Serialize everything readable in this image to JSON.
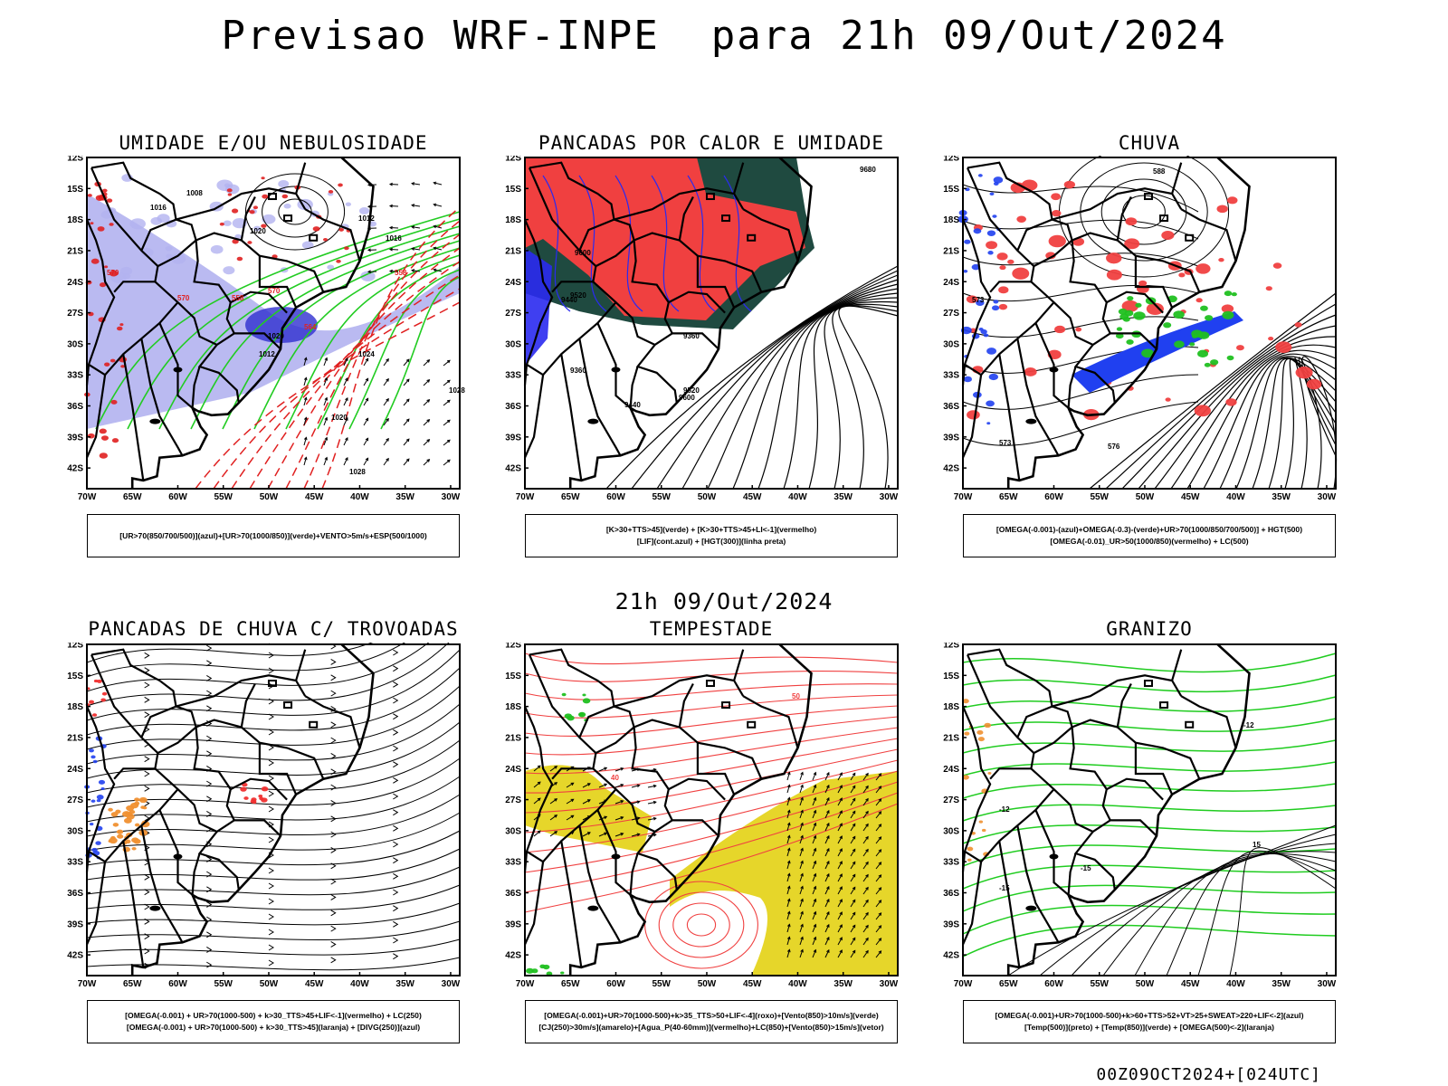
{
  "page": {
    "title": "Previsao WRF-INPE  para 21h 09/Out/2024",
    "subtitle": "21h 09/Out/2024",
    "footer": "00Z09OCT2024+[024UTC]"
  },
  "axes": {
    "lat_labels": [
      "12S",
      "15S",
      "18S",
      "21S",
      "24S",
      "27S",
      "30S",
      "33S",
      "36S",
      "39S",
      "42S"
    ],
    "lon_labels": [
      "70W",
      "65W",
      "60W",
      "55W",
      "50W",
      "45W",
      "40W",
      "35W",
      "30W"
    ]
  },
  "panels": [
    {
      "title": "UMIDADE E/OU NEBULOSIDADE",
      "legend": [
        "[UR>70(850/700/500)](azul)+[UR>70(1000/850)](verde)+VENTO>5m/s+ESP(500/1000)"
      ],
      "isobars": [
        "1008",
        "1016",
        "1020",
        "1012",
        "1016",
        "1020",
        "1012",
        "1024",
        "1028",
        "1020",
        "1028"
      ],
      "thickness": [
        "570",
        "570",
        "558",
        "558",
        "564",
        "570"
      ],
      "colors": {
        "blue": "#b3b3f0",
        "dark_blue": "#3030d0",
        "green": "#22cc22",
        "red": "#e02020"
      }
    },
    {
      "title": "PANCADAS POR CALOR E UMIDADE",
      "legend": [
        "[K>30+TTS>45](verde) + [K>30+TTS>45+LI<-1](vermelho)",
        "[LIF](cont.azul) + [HGT(300)](linha preta)"
      ],
      "heights": [
        "9600",
        "9520",
        "9440",
        "9360",
        "9520",
        "9440",
        "9360",
        "9600",
        "9680"
      ],
      "colors": {
        "red": "#f04040",
        "dark_green": "#1f4a40",
        "blue": "#2a2af0"
      }
    },
    {
      "title": "CHUVA",
      "legend": [
        "[OMEGA(-0.001)-(azul)+OMEGA(-0.3)-(verde)+UR>70(1000/850/700/500)] + HGT(500)",
        "[OMEGA(-0.01)_UR>50(1000/850)(vermelho) + LC(500)"
      ],
      "heights": [
        "588",
        "573",
        "576",
        "573"
      ],
      "colors": {
        "red": "#f04040",
        "blue": "#2040f0",
        "green": "#20c020"
      }
    },
    {
      "title": "PANCADAS DE CHUVA C/ TROVOADAS",
      "legend": [
        "[OMEGA(-0.001) + UR>70(1000-500) + k>30_TTS>45+LIF<-1](vermelho) + LC(250)",
        "[OMEGA(-0.001) + UR>70(1000-500) + k>30_TTS>45](laranja) + [DIVG(250)](azul)"
      ],
      "colors": {
        "red": "#f03030",
        "orange": "#f09030",
        "blue": "#2040f0"
      }
    },
    {
      "title": "TEMPESTADE",
      "legend": [
        "[OMEGA(-0.001)+UR>70(1000-500)+k>35_TTS>50+LIF<-4](roxo)+[Vento(850)>10m/s](verde)",
        "[CJ(250)>30m/s](amarelo)+[Agua_P(40-60mm)](vermelho)+LC(850)+[Vento(850)>15m/s](vetor)"
      ],
      "labels": [
        "40",
        "50"
      ],
      "colors": {
        "yellow": "#e6d62a",
        "red": "#f04040",
        "green": "#20c020"
      }
    },
    {
      "title": "GRANIZO",
      "legend": [
        "[OMEGA(-0.001)+UR>70(1000-500)+k>60+TTS>52+VT>25+SWEAT>220+LIF<-2](azul)",
        "[Temp(500)](preto) + [Temp(850)](verde) + [OMEGA(500)<-2](laranja)"
      ],
      "labels": [
        "-12",
        "-15",
        "-15",
        "-12",
        "15"
      ],
      "colors": {
        "green": "#20cc20",
        "orange": "#f09030"
      }
    }
  ]
}
